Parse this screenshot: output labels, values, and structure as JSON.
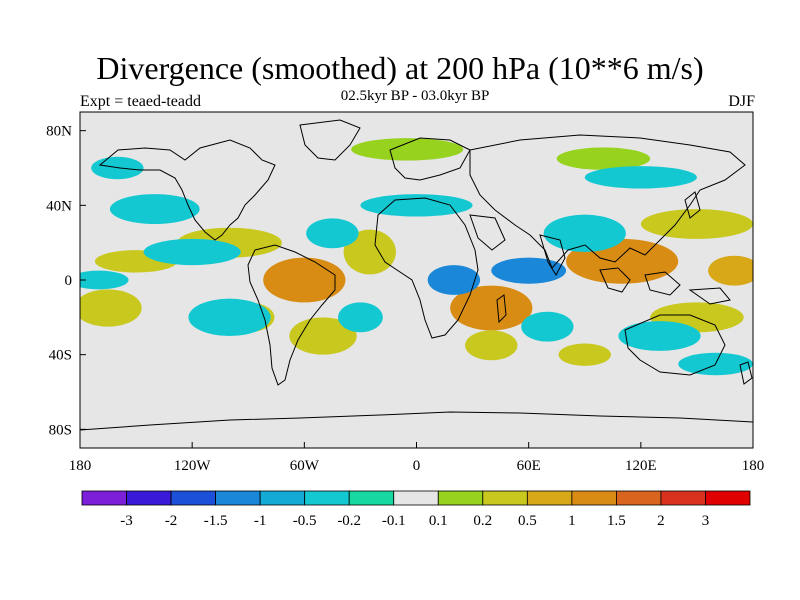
{
  "chart_data": {
    "type": "heatmap",
    "title": "Divergence (smoothed) at 200 hPa (10**6 m/s)",
    "subtitle": "02.5kyr BP - 03.0kyr BP",
    "left_label": "Expt = teaed-teadd",
    "right_label": "DJF",
    "xlim": [
      -180,
      180
    ],
    "ylim": [
      -90,
      90
    ],
    "x_ticks": [
      {
        "value": -180,
        "label": "180"
      },
      {
        "value": -120,
        "label": "120W"
      },
      {
        "value": -60,
        "label": "60W"
      },
      {
        "value": 0,
        "label": "0"
      },
      {
        "value": 60,
        "label": "60E"
      },
      {
        "value": 120,
        "label": "120E"
      },
      {
        "value": 180,
        "label": "180"
      }
    ],
    "y_ticks": [
      {
        "value": 80,
        "label": "80N"
      },
      {
        "value": 40,
        "label": "40N"
      },
      {
        "value": 0,
        "label": "0"
      },
      {
        "value": -40,
        "label": "40S"
      },
      {
        "value": -80,
        "label": "80S"
      }
    ],
    "colorbar": {
      "levels": [
        "-3",
        "-2",
        "-1.5",
        "-1",
        "-0.5",
        "-0.2",
        "-0.1",
        "0.1",
        "0.2",
        "0.5",
        "1",
        "1.5",
        "2",
        "3"
      ],
      "colors": [
        "#7b1fd9",
        "#3a1ad8",
        "#1d50d8",
        "#1a87d8",
        "#14aad6",
        "#14c8d2",
        "#18d8a2",
        "#e6e6e6",
        "#96d21e",
        "#c8c81e",
        "#d8a818",
        "#d88c14",
        "#d8641e",
        "#d8321e",
        "#e00000"
      ]
    },
    "regions": [
      {
        "lon": -100,
        "lat": 20,
        "rx": 28,
        "ry": 8,
        "level": 9
      },
      {
        "lon": -150,
        "lat": 10,
        "rx": 22,
        "ry": 6,
        "level": 9
      },
      {
        "lon": -165,
        "lat": -15,
        "rx": 18,
        "ry": 10,
        "level": 9
      },
      {
        "lon": -60,
        "lat": 0,
        "rx": 22,
        "ry": 12,
        "level": 11
      },
      {
        "lon": -50,
        "lat": -30,
        "rx": 18,
        "ry": 10,
        "level": 9
      },
      {
        "lon": -25,
        "lat": 15,
        "rx": 14,
        "ry": 12,
        "level": 9
      },
      {
        "lon": 40,
        "lat": -15,
        "rx": 22,
        "ry": 12,
        "level": 11
      },
      {
        "lon": 110,
        "lat": 10,
        "rx": 30,
        "ry": 12,
        "level": 11
      },
      {
        "lon": 150,
        "lat": 30,
        "rx": 30,
        "ry": 8,
        "level": 9
      },
      {
        "lon": 170,
        "lat": 5,
        "rx": 14,
        "ry": 8,
        "level": 10
      },
      {
        "lon": -5,
        "lat": 70,
        "rx": 30,
        "ry": 6,
        "level": 8
      },
      {
        "lon": 100,
        "lat": 65,
        "rx": 25,
        "ry": 6,
        "level": 8
      },
      {
        "lon": 150,
        "lat": -20,
        "rx": 25,
        "ry": 8,
        "level": 9
      },
      {
        "lon": 90,
        "lat": -40,
        "rx": 14,
        "ry": 6,
        "level": 9
      },
      {
        "lon": 40,
        "lat": -35,
        "rx": 14,
        "ry": 8,
        "level": 9
      },
      {
        "lon": -90,
        "lat": -20,
        "rx": 14,
        "ry": 8,
        "level": 9
      },
      {
        "lon": -140,
        "lat": 38,
        "rx": 24,
        "ry": 8,
        "level": 5
      },
      {
        "lon": -120,
        "lat": 15,
        "rx": 26,
        "ry": 7,
        "level": 5
      },
      {
        "lon": -170,
        "lat": 0,
        "rx": 16,
        "ry": 5,
        "level": 5
      },
      {
        "lon": -100,
        "lat": -20,
        "rx": 22,
        "ry": 10,
        "level": 5
      },
      {
        "lon": -45,
        "lat": 25,
        "rx": 14,
        "ry": 8,
        "level": 5
      },
      {
        "lon": 20,
        "lat": 0,
        "rx": 14,
        "ry": 8,
        "level": 3
      },
      {
        "lon": 60,
        "lat": 5,
        "rx": 20,
        "ry": 7,
        "level": 3
      },
      {
        "lon": 90,
        "lat": 25,
        "rx": 22,
        "ry": 10,
        "level": 5
      },
      {
        "lon": 130,
        "lat": -30,
        "rx": 22,
        "ry": 8,
        "level": 5
      },
      {
        "lon": 160,
        "lat": -45,
        "rx": 20,
        "ry": 6,
        "level": 5
      },
      {
        "lon": 0,
        "lat": 40,
        "rx": 30,
        "ry": 6,
        "level": 5
      },
      {
        "lon": 120,
        "lat": 55,
        "rx": 30,
        "ry": 6,
        "level": 5
      },
      {
        "lon": -30,
        "lat": -20,
        "rx": 12,
        "ry": 8,
        "level": 5
      },
      {
        "lon": 70,
        "lat": -25,
        "rx": 14,
        "ry": 8,
        "level": 5
      },
      {
        "lon": -160,
        "lat": 60,
        "rx": 14,
        "ry": 6,
        "level": 5
      }
    ]
  }
}
